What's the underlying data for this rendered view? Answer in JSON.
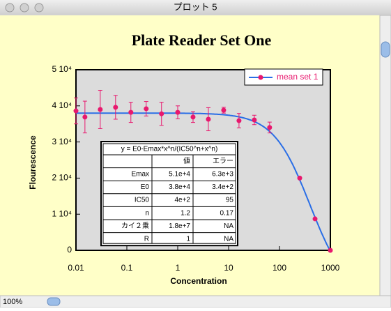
{
  "window": {
    "title": "プロット 5",
    "zoom": "100%"
  },
  "chart_data": {
    "type": "scatter",
    "title": "Plate Reader Set One",
    "xlabel": "Concentration",
    "ylabel": "Flourescence",
    "xscale": "log",
    "xlim": [
      0.01,
      1000
    ],
    "xticks": [
      0.01,
      0.1,
      1,
      10,
      100,
      1000
    ],
    "ylim": [
      0,
      50000
    ],
    "yticks": [
      0,
      {
        "value": 10000,
        "label": "1 10⁴"
      },
      {
        "value": 20000,
        "label": "2 10⁴"
      },
      {
        "value": 30000,
        "label": "3 10⁴"
      },
      {
        "value": 40000,
        "label": "4 10⁴"
      },
      {
        "value": 50000,
        "label": "5 10⁴"
      }
    ],
    "x": [
      0.01,
      0.015,
      0.03,
      0.06,
      0.12,
      0.24,
      0.48,
      1,
      2,
      4,
      8,
      16,
      32,
      64,
      250,
      500,
      1000
    ],
    "series": [
      {
        "name": "mean set 1",
        "color": "#e8186e",
        "values": [
          38600,
          36900,
          39000,
          39600,
          38200,
          39200,
          37800,
          38200,
          36900,
          36300,
          38800,
          35900,
          36100,
          34000,
          20000,
          8700,
          0
        ],
        "errors": [
          3600,
          4400,
          5300,
          3300,
          2800,
          2000,
          3200,
          1800,
          1500,
          3200,
          800,
          2000,
          1300,
          1500,
          0,
          0,
          0
        ]
      }
    ],
    "curve_color": "#2a6ee6",
    "legend": "upper right",
    "fit": {
      "equation": "y = E0-Emax*x^n/(IC50^n+x^n)",
      "header": [
        "値",
        "エラー"
      ],
      "rows": [
        [
          "Emax",
          "5.1e+4",
          "6.3e+3"
        ],
        [
          "E0",
          "3.8e+4",
          "3.4e+2"
        ],
        [
          "IC50",
          "4e+2",
          "95"
        ],
        [
          "n",
          "1.2",
          "0.17"
        ],
        [
          "カイ２乗",
          "1.8e+7",
          "NA"
        ],
        [
          "R",
          "1",
          "NA"
        ]
      ]
    }
  }
}
